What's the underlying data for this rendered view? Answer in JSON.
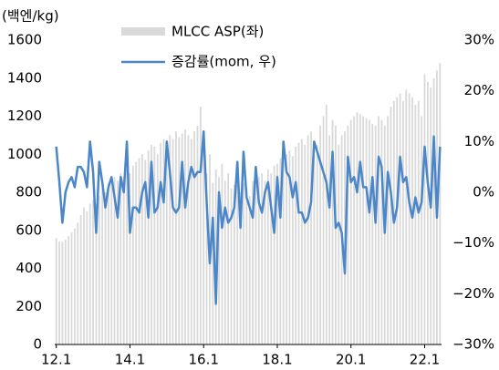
{
  "chart_data": {
    "type": "bar_line",
    "ylabel": "(백엔/kg)",
    "categories": [
      "12.1",
      null,
      null,
      null,
      null,
      null,
      null,
      null,
      null,
      null,
      null,
      null,
      null,
      null,
      null,
      null,
      null,
      null,
      null,
      null,
      null,
      null,
      null,
      null,
      "14.1",
      null,
      null,
      null,
      null,
      null,
      null,
      null,
      null,
      null,
      null,
      null,
      null,
      null,
      null,
      null,
      null,
      null,
      null,
      null,
      null,
      null,
      null,
      null,
      "16.1",
      null,
      null,
      null,
      null,
      null,
      null,
      null,
      null,
      null,
      null,
      null,
      null,
      null,
      null,
      null,
      null,
      null,
      null,
      null,
      null,
      null,
      null,
      null,
      "18.1",
      null,
      null,
      null,
      null,
      null,
      null,
      null,
      null,
      null,
      null,
      null,
      null,
      null,
      null,
      null,
      null,
      null,
      null,
      null,
      null,
      null,
      null,
      null,
      "20.1",
      null,
      null,
      null,
      null,
      null,
      null,
      null,
      null,
      null,
      null,
      null,
      null,
      null,
      null,
      null,
      null,
      null,
      null,
      null,
      null,
      null,
      null,
      null,
      "22.1",
      null,
      null,
      null,
      null,
      null
    ],
    "series": [
      {
        "name": "MLCC ASP(좌)",
        "type": "bar",
        "color": "#d9d9d9",
        "values": [
          560,
          540,
          540,
          550,
          570,
          590,
          610,
          640,
          680,
          720,
          700,
          740,
          760,
          740,
          780,
          820,
          800,
          850,
          830,
          880,
          860,
          900,
          880,
          920,
          900,
          940,
          960,
          980,
          1000,
          970,
          1020,
          1050,
          1040,
          1000,
          1060,
          1080,
          1050,
          1100,
          1080,
          1120,
          1090,
          1110,
          1130,
          1100,
          1080,
          1120,
          1150,
          1250,
          1100,
          900,
          1000,
          850,
          920,
          880,
          950,
          860,
          900,
          820,
          840,
          880,
          800,
          850,
          820,
          780,
          860,
          840,
          880,
          900,
          860,
          920,
          900,
          940,
          950,
          980,
          960,
          1000,
          1020,
          990,
          1040,
          1060,
          1080,
          1050,
          1100,
          1120,
          1000,
          1050,
          1150,
          1200,
          1260,
          1100,
          1180,
          1150,
          1050,
          1100,
          1120,
          1150,
          1180,
          1200,
          1220,
          1210,
          1200,
          1190,
          1180,
          1160,
          1150,
          1200,
          1180,
          1150,
          1200,
          1250,
          1280,
          1300,
          1320,
          1280,
          1340,
          1320,
          1300,
          1260,
          1280,
          1200,
          1420,
          1380,
          1350,
          1400,
          1440,
          1480
        ]
      },
      {
        "name": "증감률(mom, 우)",
        "type": "line",
        "axis": "y2",
        "color": "#4a86c8",
        "values": [
          9,
          2,
          -6,
          0,
          2,
          3,
          1,
          5,
          5,
          4,
          1,
          10,
          4,
          -8,
          6,
          2,
          -3,
          1,
          3,
          -1,
          -5,
          3,
          0,
          10,
          -8,
          -3,
          -3,
          -4,
          0,
          2,
          -5,
          6,
          -4,
          -3,
          2,
          -2,
          10,
          4,
          -3,
          -4,
          -3,
          6,
          -3,
          2,
          5,
          3,
          4,
          4,
          12,
          -2,
          -14,
          -5,
          -22,
          0,
          -7,
          -3,
          -6,
          -5,
          -3,
          6,
          -7,
          8,
          -1,
          -3,
          -5,
          5,
          -2,
          -4,
          0,
          2,
          -3,
          -8,
          3,
          -5,
          10,
          4,
          3,
          -1,
          2,
          -4,
          -4,
          -6,
          -5,
          -2,
          10,
          8,
          6,
          4,
          2,
          -3,
          8,
          -7,
          -6,
          -8,
          -16,
          7,
          2,
          3,
          0,
          6,
          1,
          1,
          -4,
          3,
          -6,
          7,
          5,
          -8,
          4,
          0,
          -6,
          -3,
          7,
          2,
          3,
          -2,
          -5,
          -1,
          -4,
          -2,
          9,
          2,
          -3,
          11,
          -5,
          9
        ]
      }
    ],
    "ylim": [
      0,
      1600
    ],
    "yticks": [
      0,
      200,
      400,
      600,
      800,
      1000,
      1200,
      1400,
      1600
    ],
    "y2lim": [
      -30,
      30
    ],
    "y2ticks": [
      {
        "value": -30,
        "label": "−30%"
      },
      {
        "value": -20,
        "label": "−20%"
      },
      {
        "value": -10,
        "label": "−10%"
      },
      {
        "value": 0,
        "label": "0%"
      },
      {
        "value": 10,
        "label": "10%"
      },
      {
        "value": 20,
        "label": "20%"
      },
      {
        "value": 30,
        "label": "30%"
      }
    ]
  }
}
